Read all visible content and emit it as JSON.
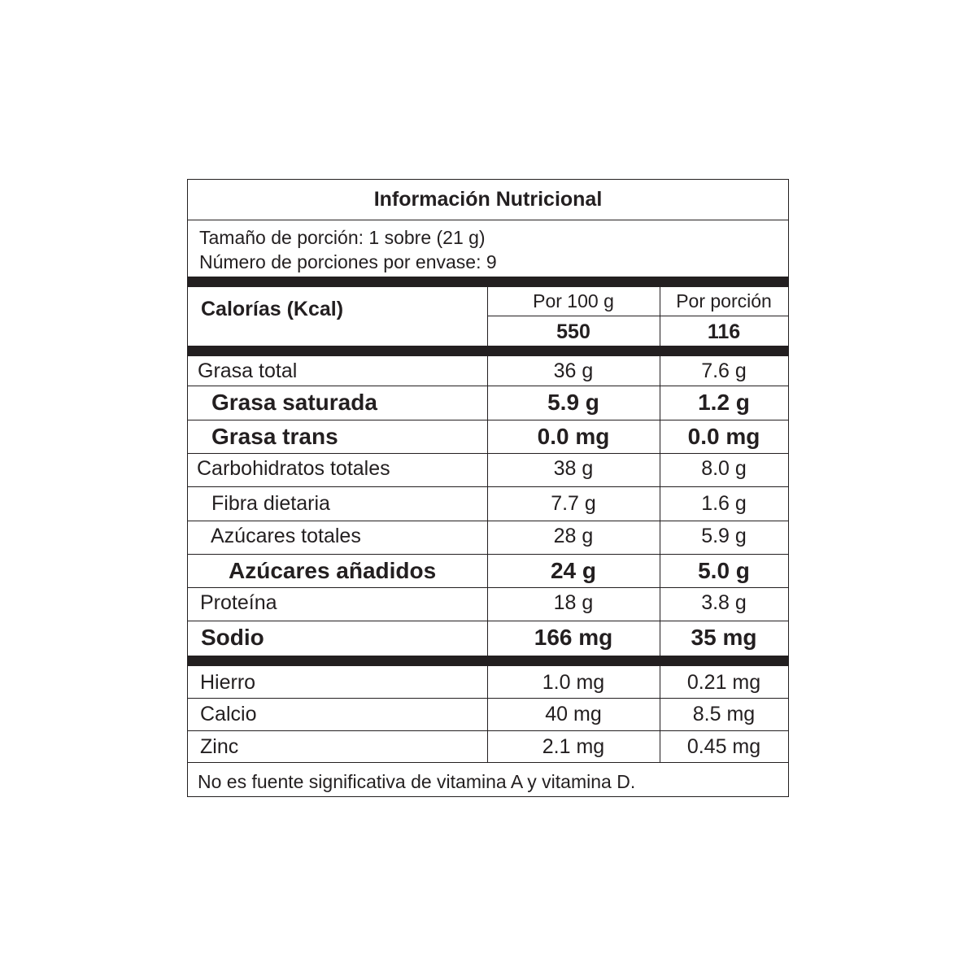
{
  "title": "Información Nutricional",
  "serving_size": "Tamaño de porción: 1 sobre (21 g)",
  "servings_per_container": "Número de porciones por envase: 9",
  "columns": {
    "per_100g": "Por 100 g",
    "per_serving": "Por porción"
  },
  "calories": {
    "label": "Calorías (Kcal)",
    "per_100g": "550",
    "per_serving": "116"
  },
  "nutrients": [
    {
      "label": "Grasa total",
      "per_100g": "36 g",
      "per_serving": "7.6 g"
    },
    {
      "label": "Grasa saturada",
      "per_100g": "5.9 g",
      "per_serving": "1.2 g"
    },
    {
      "label": "Grasa trans",
      "per_100g": "0.0 mg",
      "per_serving": "0.0 mg"
    },
    {
      "label": "Carbohidratos totales",
      "per_100g": "38 g",
      "per_serving": "8.0 g"
    },
    {
      "label": "Fibra dietaria",
      "per_100g": "7.7 g",
      "per_serving": "1.6 g"
    },
    {
      "label": "Azúcares totales",
      "per_100g": "28 g",
      "per_serving": "5.9 g"
    },
    {
      "label": "Azúcares añadidos",
      "per_100g": "24 g",
      "per_serving": "5.0 g"
    },
    {
      "label": "Proteína",
      "per_100g": "18 g",
      "per_serving": "3.8 g"
    },
    {
      "label": "Sodio",
      "per_100g": "166 mg",
      "per_serving": "35 mg"
    }
  ],
  "minerals": [
    {
      "label": "Hierro",
      "per_100g": "1.0 mg",
      "per_serving": "0.21 mg"
    },
    {
      "label": "Calcio",
      "per_100g": "40 mg",
      "per_serving": "8.5 mg"
    },
    {
      "label": "Zinc",
      "per_100g": "2.1 mg",
      "per_serving": "0.45 mg"
    }
  ],
  "footnote": "No es fuente significativa de vitamina A y vitamina D."
}
